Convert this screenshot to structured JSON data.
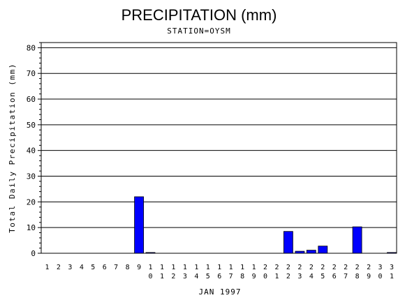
{
  "chart_data": {
    "type": "bar",
    "title": "PRECIPITATION (mm)",
    "subtitle": "STATION=OYSM",
    "xlabel": "JAN 1997",
    "ylabel": "Total Daily Precipitation (mm)",
    "ylim": [
      0,
      82
    ],
    "yticks": [
      0,
      10,
      20,
      30,
      40,
      50,
      60,
      70,
      80
    ],
    "grid": true,
    "bar_color": "#0000ff",
    "categories": [
      "1",
      "2",
      "3",
      "4",
      "5",
      "6",
      "7",
      "8",
      "9",
      "10",
      "11",
      "12",
      "13",
      "14",
      "15",
      "16",
      "17",
      "18",
      "19",
      "20",
      "21",
      "22",
      "23",
      "24",
      "25",
      "26",
      "27",
      "28",
      "29",
      "30",
      "31"
    ],
    "values": [
      0,
      0,
      0,
      0,
      0,
      0,
      0,
      0,
      22,
      0.3,
      0,
      0,
      0,
      0,
      0,
      0,
      0,
      0,
      0,
      0,
      0,
      8.5,
      0.8,
      1.2,
      2.8,
      0,
      0,
      10.3,
      0,
      0,
      0.3
    ]
  }
}
